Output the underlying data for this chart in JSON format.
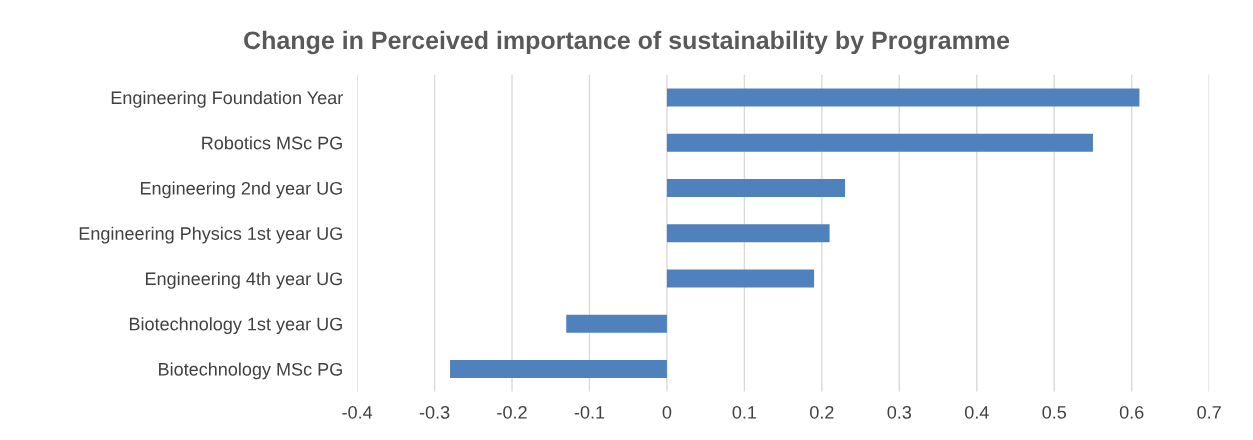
{
  "chart_data": {
    "type": "bar",
    "orientation": "horizontal",
    "title": "Change in Perceived importance of sustainability by Programme",
    "categories": [
      "Engineering Foundation Year",
      "Robotics MSc PG",
      "Engineering 2nd year UG",
      "Engineering Physics 1st year UG",
      "Engineering 4th year UG",
      "Biotechnology 1st year UG",
      "Biotechnology MSc PG"
    ],
    "values": [
      0.61,
      0.55,
      0.23,
      0.21,
      0.19,
      -0.13,
      -0.28
    ],
    "color": "#4f81bd",
    "xlim": [
      -0.4,
      0.7
    ],
    "xticks": [
      -0.4,
      -0.3,
      -0.2,
      -0.1,
      0,
      0.1,
      0.2,
      0.3,
      0.4,
      0.5,
      0.6,
      0.7
    ],
    "grid": "x"
  }
}
